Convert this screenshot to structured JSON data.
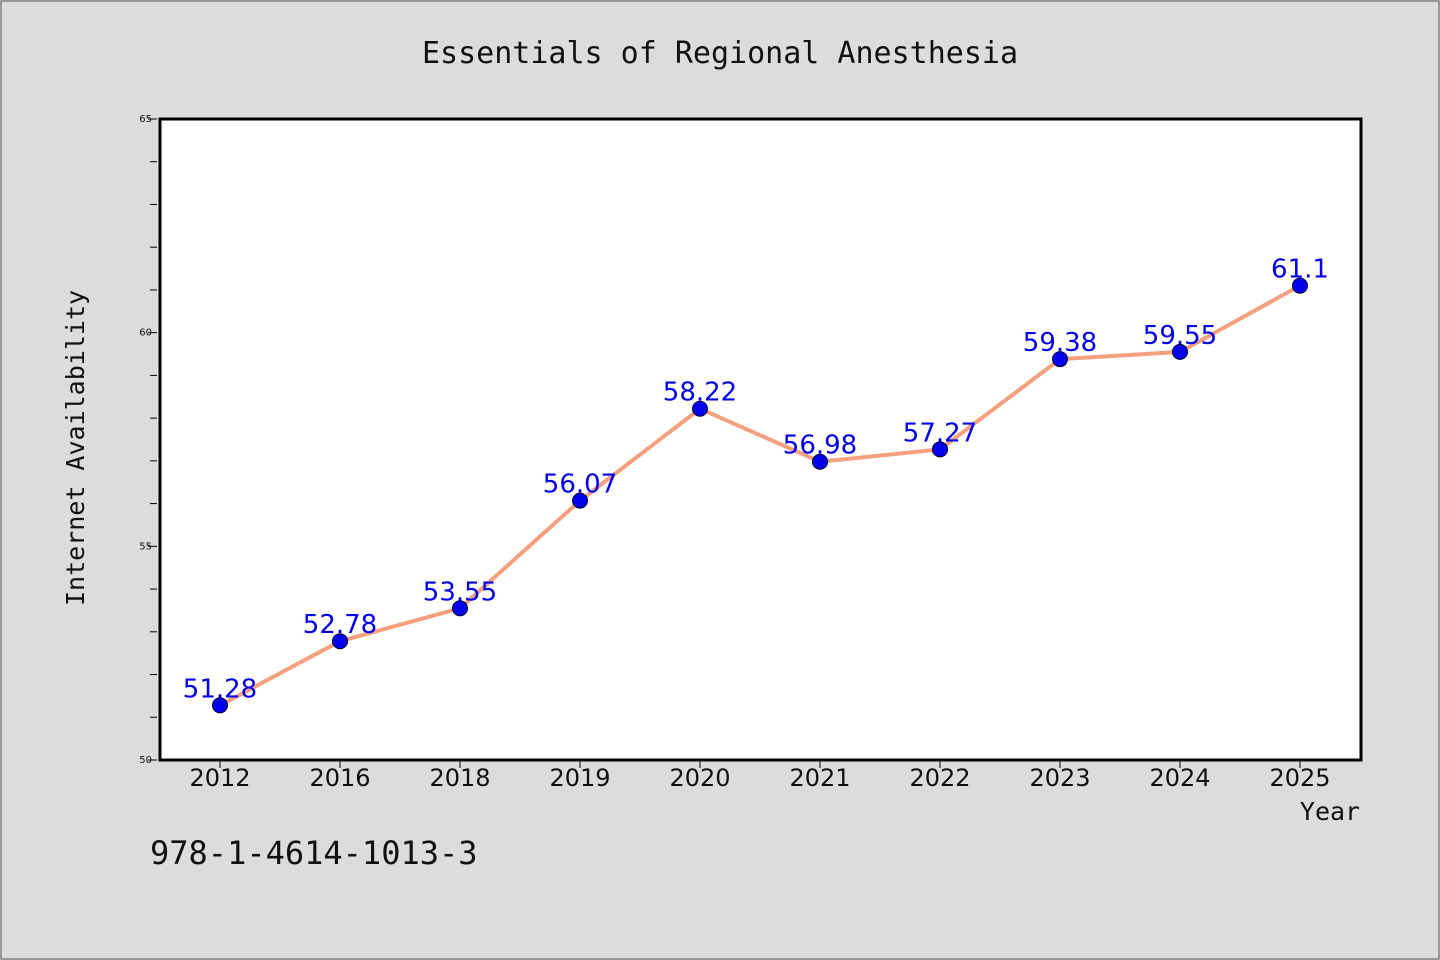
{
  "chart_data": {
    "type": "line",
    "title": "Essentials of Regional Anesthesia",
    "xlabel": "Year",
    "ylabel": "Internet Availability",
    "categories": [
      "2012",
      "2016",
      "2018",
      "2019",
      "2020",
      "2021",
      "2022",
      "2023",
      "2024",
      "2025"
    ],
    "series": [
      {
        "values": [
          51.28,
          52.78,
          53.55,
          56.07,
          58.22,
          56.98,
          57.27,
          59.38,
          59.55,
          61.1
        ],
        "line_color": "#f4a07e",
        "marker_color": "#0000ee"
      }
    ],
    "data_labels": [
      "51.28",
      "52.78",
      "53.55",
      "56.07",
      "58.22",
      "56.98",
      "57.27",
      "59.38",
      "59.55",
      "61.1"
    ],
    "ylim": [
      50,
      65
    ],
    "yticks": [
      "50",
      "55",
      "60",
      "65"
    ],
    "grid": false,
    "legend": "none"
  },
  "footer": {
    "isbn": "978-1-4614-1013-3"
  },
  "colors": {
    "background": "#dcdcdc",
    "plot_background": "#ffffff",
    "label": "#0000ee"
  }
}
